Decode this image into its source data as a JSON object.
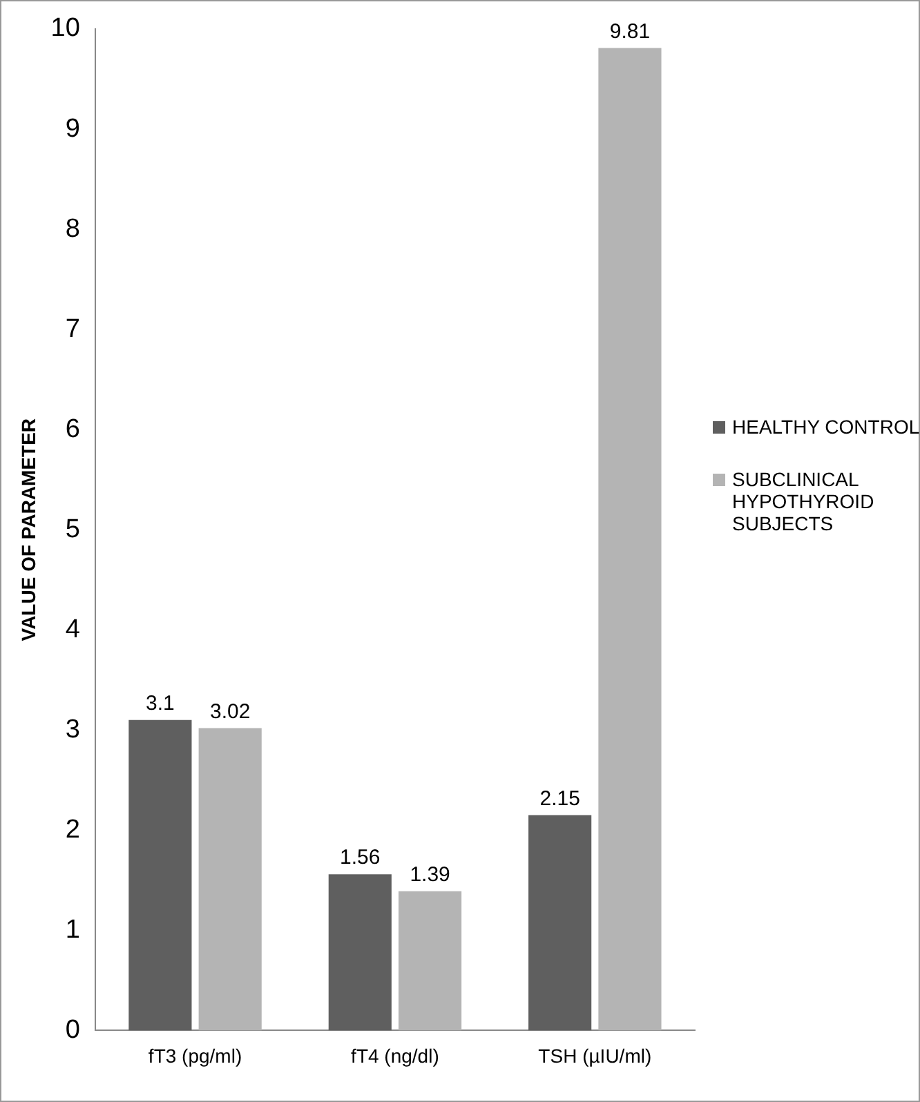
{
  "chart_data": {
    "type": "bar",
    "ylabel": "VALUE OF PARAMETER",
    "categories": [
      "fT3 (pg/ml)",
      "fT4 (ng/dl)",
      "TSH (µIU/ml)"
    ],
    "series": [
      {
        "name": "HEALTHY CONTROL",
        "color": "#5f5f5f",
        "values": [
          3.1,
          1.56,
          2.15
        ]
      },
      {
        "name": "SUBCLINICAL HYPOTHYROID SUBJECTS",
        "color": "#b4b4b4",
        "values": [
          3.02,
          1.39,
          9.81
        ]
      }
    ],
    "ylim": [
      0,
      10
    ],
    "yticks": [
      0,
      1,
      2,
      3,
      4,
      5,
      6,
      7,
      8,
      9,
      10
    ],
    "grid": false,
    "legend": "right",
    "data_labels": true
  }
}
